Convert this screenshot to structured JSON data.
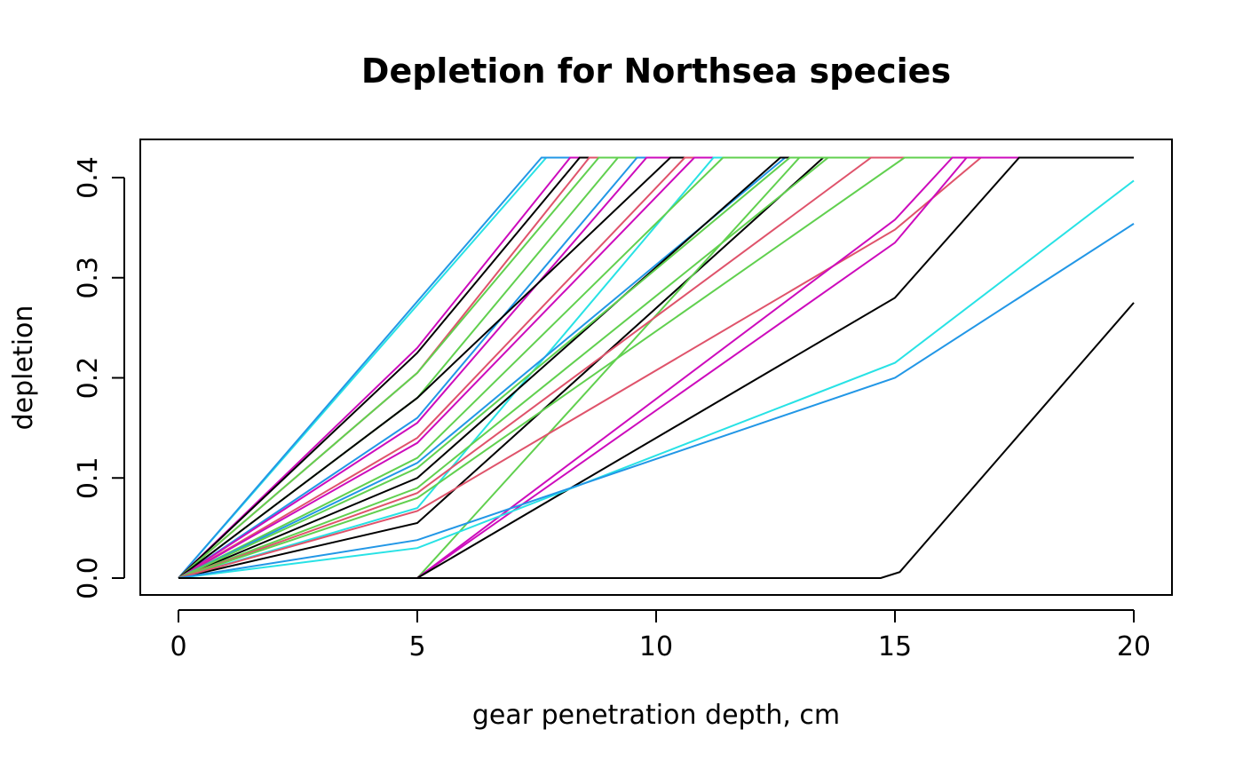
{
  "chart_data": {
    "type": "line",
    "title": "Depletion for Northsea species",
    "xlabel": "gear penetration depth, cm",
    "ylabel": "depletion",
    "xlim": [
      0,
      20
    ],
    "ylim": [
      0,
      0.42
    ],
    "xticks": [
      0,
      5,
      10,
      15,
      20
    ],
    "xtick_labels": [
      "0",
      "5",
      "10",
      "15",
      "20"
    ],
    "yticks": [
      0,
      0.1,
      0.2,
      0.3,
      0.4
    ],
    "ytick_labels": [
      "0.0",
      "0.1",
      "0.2",
      "0.3",
      "0.4"
    ],
    "grid": false,
    "legend": "none",
    "series": [
      {
        "color": "#28E2E5",
        "x": [
          0,
          7.7,
          20
        ],
        "y": [
          0,
          0.42,
          0.42
        ]
      },
      {
        "color": "#2297E6",
        "x": [
          0,
          7.6,
          20
        ],
        "y": [
          0,
          0.42,
          0.42
        ]
      },
      {
        "color": "#CD0BBC",
        "x": [
          0,
          5,
          8.2,
          20
        ],
        "y": [
          0,
          0.23,
          0.42,
          0.42
        ]
      },
      {
        "color": "#000000",
        "x": [
          0,
          5,
          8.4,
          20
        ],
        "y": [
          0,
          0.225,
          0.42,
          0.42
        ]
      },
      {
        "color": "#DF536B",
        "x": [
          0,
          5,
          8.6,
          20
        ],
        "y": [
          0,
          0.205,
          0.42,
          0.42
        ]
      },
      {
        "color": "#61D04F",
        "x": [
          0,
          5,
          8.8,
          20
        ],
        "y": [
          0,
          0.205,
          0.42,
          0.42
        ]
      },
      {
        "color": "#61D04F",
        "x": [
          0,
          5,
          9.2,
          20
        ],
        "y": [
          0,
          0.18,
          0.42,
          0.42
        ]
      },
      {
        "color": "#2297E6",
        "x": [
          0,
          5,
          9.6,
          20
        ],
        "y": [
          0,
          0.16,
          0.42,
          0.42
        ]
      },
      {
        "color": "#CD0BBC",
        "x": [
          0,
          5,
          9.8,
          20
        ],
        "y": [
          0,
          0.155,
          0.42,
          0.42
        ]
      },
      {
        "color": "#000000",
        "x": [
          0,
          5,
          10.3,
          20
        ],
        "y": [
          0,
          0.18,
          0.42,
          0.42
        ]
      },
      {
        "color": "#DF536B",
        "x": [
          0,
          5,
          10.6,
          20
        ],
        "y": [
          0,
          0.14,
          0.42,
          0.42
        ]
      },
      {
        "color": "#CD0BBC",
        "x": [
          0,
          5,
          10.8,
          20
        ],
        "y": [
          0,
          0.135,
          0.42,
          0.42
        ]
      },
      {
        "color": "#28E2E5",
        "x": [
          0,
          5,
          11.2,
          20
        ],
        "y": [
          0,
          0.07,
          0.42,
          0.42
        ]
      },
      {
        "color": "#61D04F",
        "x": [
          0,
          5,
          11.4,
          20
        ],
        "y": [
          0,
          0.12,
          0.42,
          0.42
        ]
      },
      {
        "color": "#2297E6",
        "x": [
          0,
          5,
          12.7,
          20
        ],
        "y": [
          0,
          0.115,
          0.42,
          0.42
        ]
      },
      {
        "color": "#000000",
        "x": [
          0,
          5,
          12.6,
          20
        ],
        "y": [
          0,
          0.1,
          0.42,
          0.42
        ]
      },
      {
        "color": "#000000",
        "x": [
          0,
          5,
          13.5,
          20
        ],
        "y": [
          0,
          0.055,
          0.42,
          0.42
        ]
      },
      {
        "color": "#61D04F",
        "x": [
          0,
          5,
          12.8,
          20
        ],
        "y": [
          0,
          0.11,
          0.42,
          0.42
        ]
      },
      {
        "color": "#61D04F",
        "x": [
          0,
          5,
          13.6,
          20
        ],
        "y": [
          0,
          0.09,
          0.42,
          0.42
        ]
      },
      {
        "color": "#61D04F",
        "x": [
          0,
          5,
          13.0,
          20
        ],
        "y": [
          0,
          0.0,
          0.42,
          0.42
        ]
      },
      {
        "color": "#DF536B",
        "x": [
          0,
          5,
          14.5,
          20
        ],
        "y": [
          0,
          0.085,
          0.42,
          0.42
        ]
      },
      {
        "color": "#61D04F",
        "x": [
          0,
          5,
          15.2,
          20
        ],
        "y": [
          0,
          0.08,
          0.42,
          0.42
        ]
      },
      {
        "color": "#DF536B",
        "x": [
          0,
          5,
          15.0,
          16.8,
          20
        ],
        "y": [
          0,
          0.067,
          0.348,
          0.42,
          0.42
        ]
      },
      {
        "color": "#CD0BBC",
        "x": [
          0,
          5,
          15.0,
          16.2,
          20
        ],
        "y": [
          0,
          0.0,
          0.358,
          0.42,
          0.42
        ]
      },
      {
        "color": "#CD0BBC",
        "x": [
          0,
          5,
          15.0,
          16.5,
          20
        ],
        "y": [
          0,
          0.0,
          0.335,
          0.42,
          0.42
        ]
      },
      {
        "color": "#000000",
        "x": [
          0,
          5,
          15.0,
          17.6,
          20
        ],
        "y": [
          0,
          0.0,
          0.28,
          0.42,
          0.42
        ]
      },
      {
        "color": "#28E2E5",
        "x": [
          0,
          5,
          15.0,
          20
        ],
        "y": [
          0,
          0.03,
          0.215,
          0.397
        ]
      },
      {
        "color": "#2297E6",
        "x": [
          0,
          5,
          15.0,
          20
        ],
        "y": [
          0,
          0.038,
          0.2,
          0.354
        ]
      },
      {
        "color": "#000000",
        "x": [
          0,
          5,
          14.7,
          15.1,
          20
        ],
        "y": [
          0,
          0.0,
          0.0,
          0.006,
          0.275
        ]
      }
    ]
  }
}
